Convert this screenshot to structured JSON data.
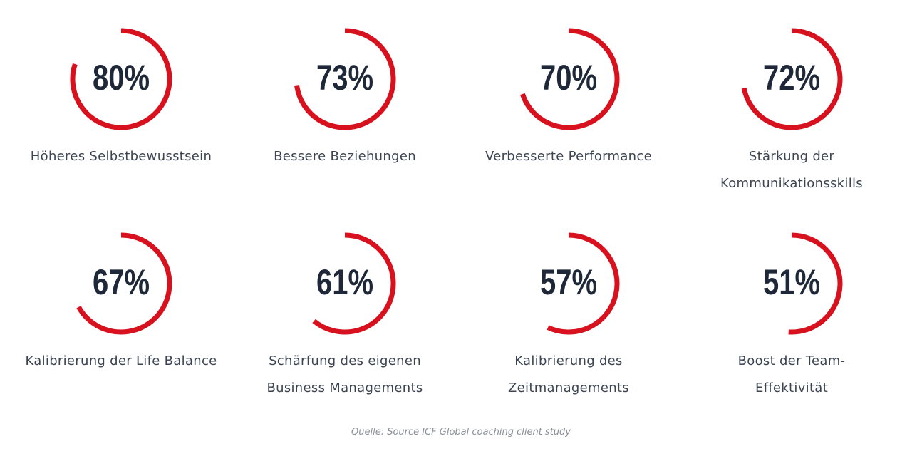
{
  "chart_data": [
    {
      "type": "radial",
      "categories": [
        "Höheres Selbstbewusstsein"
      ],
      "values": [
        80
      ],
      "value_labels": [
        "80%"
      ],
      "color": "#d7111d",
      "ylim": [
        0,
        100
      ]
    },
    {
      "type": "radial",
      "categories": [
        "Bessere Beziehungen"
      ],
      "values": [
        73
      ],
      "value_labels": [
        "73%"
      ],
      "color": "#d7111d",
      "ylim": [
        0,
        100
      ]
    },
    {
      "type": "radial",
      "categories": [
        "Verbesserte Performance"
      ],
      "values": [
        70
      ],
      "value_labels": [
        "70%"
      ],
      "color": "#d7111d",
      "ylim": [
        0,
        100
      ]
    },
    {
      "type": "radial",
      "categories": [
        "Stärkung der Kommunikationsskills"
      ],
      "values": [
        72
      ],
      "value_labels": [
        "72%"
      ],
      "color": "#d7111d",
      "ylim": [
        0,
        100
      ]
    },
    {
      "type": "radial",
      "categories": [
        "Kalibrierung der Life Balance"
      ],
      "values": [
        67
      ],
      "value_labels": [
        "67%"
      ],
      "color": "#d7111d",
      "ylim": [
        0,
        100
      ]
    },
    {
      "type": "radial",
      "categories": [
        "Schärfung des eigenen Business Managements"
      ],
      "values": [
        61
      ],
      "value_labels": [
        "61%"
      ],
      "color": "#d7111d",
      "ylim": [
        0,
        100
      ]
    },
    {
      "type": "radial",
      "categories": [
        "Kalibrierung des Zeitmanagements"
      ],
      "values": [
        57
      ],
      "value_labels": [
        "57%"
      ],
      "color": "#d7111d",
      "ylim": [
        0,
        100
      ]
    },
    {
      "type": "radial",
      "categories": [
        "Boost der Team-Effektivität"
      ],
      "values": [
        51
      ],
      "value_labels": [
        "51%"
      ],
      "color": "#d7111d",
      "ylim": [
        0,
        100
      ]
    }
  ],
  "source": "Quelle: Source ICF Global coaching client study"
}
